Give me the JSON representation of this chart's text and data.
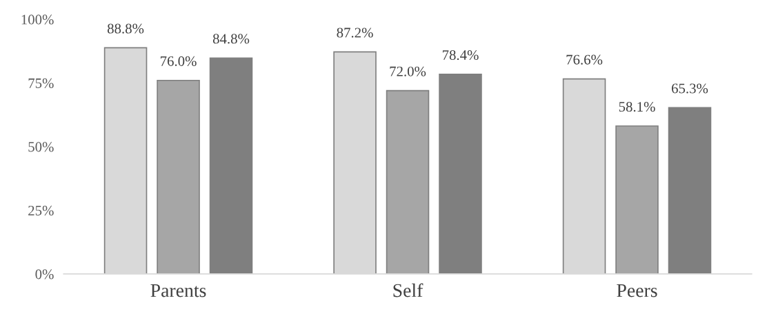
{
  "chart_data": {
    "type": "bar",
    "categories": [
      "Parents",
      "Self",
      "Peers"
    ],
    "series": [
      {
        "color": "#d9d9d9",
        "values": [
          88.8,
          87.2,
          76.6
        ],
        "value_labels": [
          "88.8%",
          "87.2%",
          "76.6%"
        ]
      },
      {
        "color": "#a6a6a6",
        "values": [
          76.0,
          72.0,
          58.1
        ],
        "value_labels": [
          "76.0%",
          "72.0%",
          "58.1%"
        ]
      },
      {
        "color": "#7f7f7f",
        "values": [
          84.8,
          78.4,
          65.3
        ],
        "value_labels": [
          "84.8%",
          "78.4%",
          "65.3%"
        ]
      }
    ],
    "ylim": [
      0,
      100
    ],
    "yticks": [
      {
        "value": 0,
        "label": "0%"
      },
      {
        "value": 25,
        "label": "25%"
      },
      {
        "value": 50,
        "label": "50%"
      },
      {
        "value": 75,
        "label": "75%"
      },
      {
        "value": 100,
        "label": "100%"
      }
    ],
    "grid": false,
    "legend": false
  }
}
